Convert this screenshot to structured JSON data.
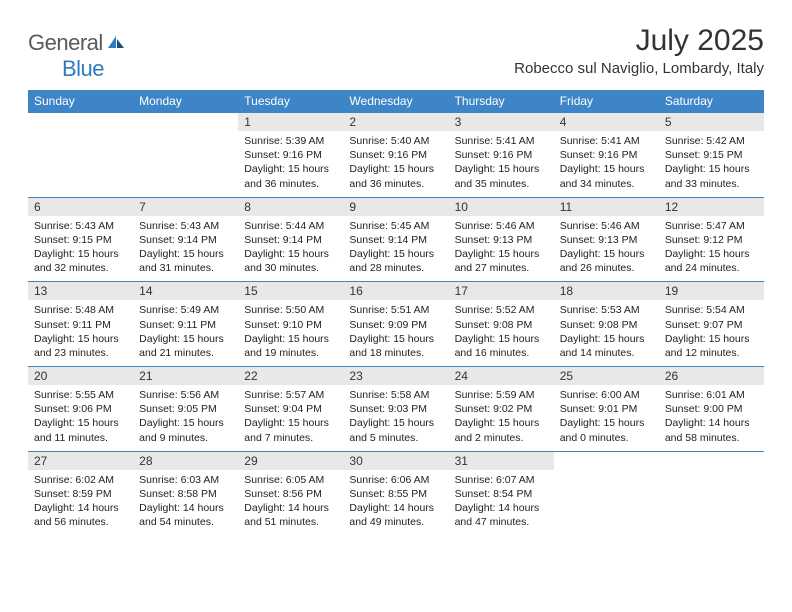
{
  "logo": {
    "text1": "General",
    "text2": "Blue"
  },
  "title": "July 2025",
  "location": "Robecco sul Naviglio, Lombardy, Italy",
  "colors": {
    "header_bg": "#3d85c6",
    "header_text": "#ffffff",
    "daynum_bg": "#e8e8e8",
    "border": "#3d85c6",
    "logo_gray": "#5a5a5a",
    "logo_blue": "#2f7bbf"
  },
  "weekdays": [
    "Sunday",
    "Monday",
    "Tuesday",
    "Wednesday",
    "Thursday",
    "Friday",
    "Saturday"
  ],
  "weeks": [
    {
      "nums": [
        "",
        "",
        "1",
        "2",
        "3",
        "4",
        "5"
      ],
      "cells": [
        "",
        "",
        "Sunrise: 5:39 AM\nSunset: 9:16 PM\nDaylight: 15 hours and 36 minutes.",
        "Sunrise: 5:40 AM\nSunset: 9:16 PM\nDaylight: 15 hours and 36 minutes.",
        "Sunrise: 5:41 AM\nSunset: 9:16 PM\nDaylight: 15 hours and 35 minutes.",
        "Sunrise: 5:41 AM\nSunset: 9:16 PM\nDaylight: 15 hours and 34 minutes.",
        "Sunrise: 5:42 AM\nSunset: 9:15 PM\nDaylight: 15 hours and 33 minutes."
      ]
    },
    {
      "nums": [
        "6",
        "7",
        "8",
        "9",
        "10",
        "11",
        "12"
      ],
      "cells": [
        "Sunrise: 5:43 AM\nSunset: 9:15 PM\nDaylight: 15 hours and 32 minutes.",
        "Sunrise: 5:43 AM\nSunset: 9:14 PM\nDaylight: 15 hours and 31 minutes.",
        "Sunrise: 5:44 AM\nSunset: 9:14 PM\nDaylight: 15 hours and 30 minutes.",
        "Sunrise: 5:45 AM\nSunset: 9:14 PM\nDaylight: 15 hours and 28 minutes.",
        "Sunrise: 5:46 AM\nSunset: 9:13 PM\nDaylight: 15 hours and 27 minutes.",
        "Sunrise: 5:46 AM\nSunset: 9:13 PM\nDaylight: 15 hours and 26 minutes.",
        "Sunrise: 5:47 AM\nSunset: 9:12 PM\nDaylight: 15 hours and 24 minutes."
      ]
    },
    {
      "nums": [
        "13",
        "14",
        "15",
        "16",
        "17",
        "18",
        "19"
      ],
      "cells": [
        "Sunrise: 5:48 AM\nSunset: 9:11 PM\nDaylight: 15 hours and 23 minutes.",
        "Sunrise: 5:49 AM\nSunset: 9:11 PM\nDaylight: 15 hours and 21 minutes.",
        "Sunrise: 5:50 AM\nSunset: 9:10 PM\nDaylight: 15 hours and 19 minutes.",
        "Sunrise: 5:51 AM\nSunset: 9:09 PM\nDaylight: 15 hours and 18 minutes.",
        "Sunrise: 5:52 AM\nSunset: 9:08 PM\nDaylight: 15 hours and 16 minutes.",
        "Sunrise: 5:53 AM\nSunset: 9:08 PM\nDaylight: 15 hours and 14 minutes.",
        "Sunrise: 5:54 AM\nSunset: 9:07 PM\nDaylight: 15 hours and 12 minutes."
      ]
    },
    {
      "nums": [
        "20",
        "21",
        "22",
        "23",
        "24",
        "25",
        "26"
      ],
      "cells": [
        "Sunrise: 5:55 AM\nSunset: 9:06 PM\nDaylight: 15 hours and 11 minutes.",
        "Sunrise: 5:56 AM\nSunset: 9:05 PM\nDaylight: 15 hours and 9 minutes.",
        "Sunrise: 5:57 AM\nSunset: 9:04 PM\nDaylight: 15 hours and 7 minutes.",
        "Sunrise: 5:58 AM\nSunset: 9:03 PM\nDaylight: 15 hours and 5 minutes.",
        "Sunrise: 5:59 AM\nSunset: 9:02 PM\nDaylight: 15 hours and 2 minutes.",
        "Sunrise: 6:00 AM\nSunset: 9:01 PM\nDaylight: 15 hours and 0 minutes.",
        "Sunrise: 6:01 AM\nSunset: 9:00 PM\nDaylight: 14 hours and 58 minutes."
      ]
    },
    {
      "nums": [
        "27",
        "28",
        "29",
        "30",
        "31",
        "",
        ""
      ],
      "cells": [
        "Sunrise: 6:02 AM\nSunset: 8:59 PM\nDaylight: 14 hours and 56 minutes.",
        "Sunrise: 6:03 AM\nSunset: 8:58 PM\nDaylight: 14 hours and 54 minutes.",
        "Sunrise: 6:05 AM\nSunset: 8:56 PM\nDaylight: 14 hours and 51 minutes.",
        "Sunrise: 6:06 AM\nSunset: 8:55 PM\nDaylight: 14 hours and 49 minutes.",
        "Sunrise: 6:07 AM\nSunset: 8:54 PM\nDaylight: 14 hours and 47 minutes.",
        "",
        ""
      ]
    }
  ]
}
